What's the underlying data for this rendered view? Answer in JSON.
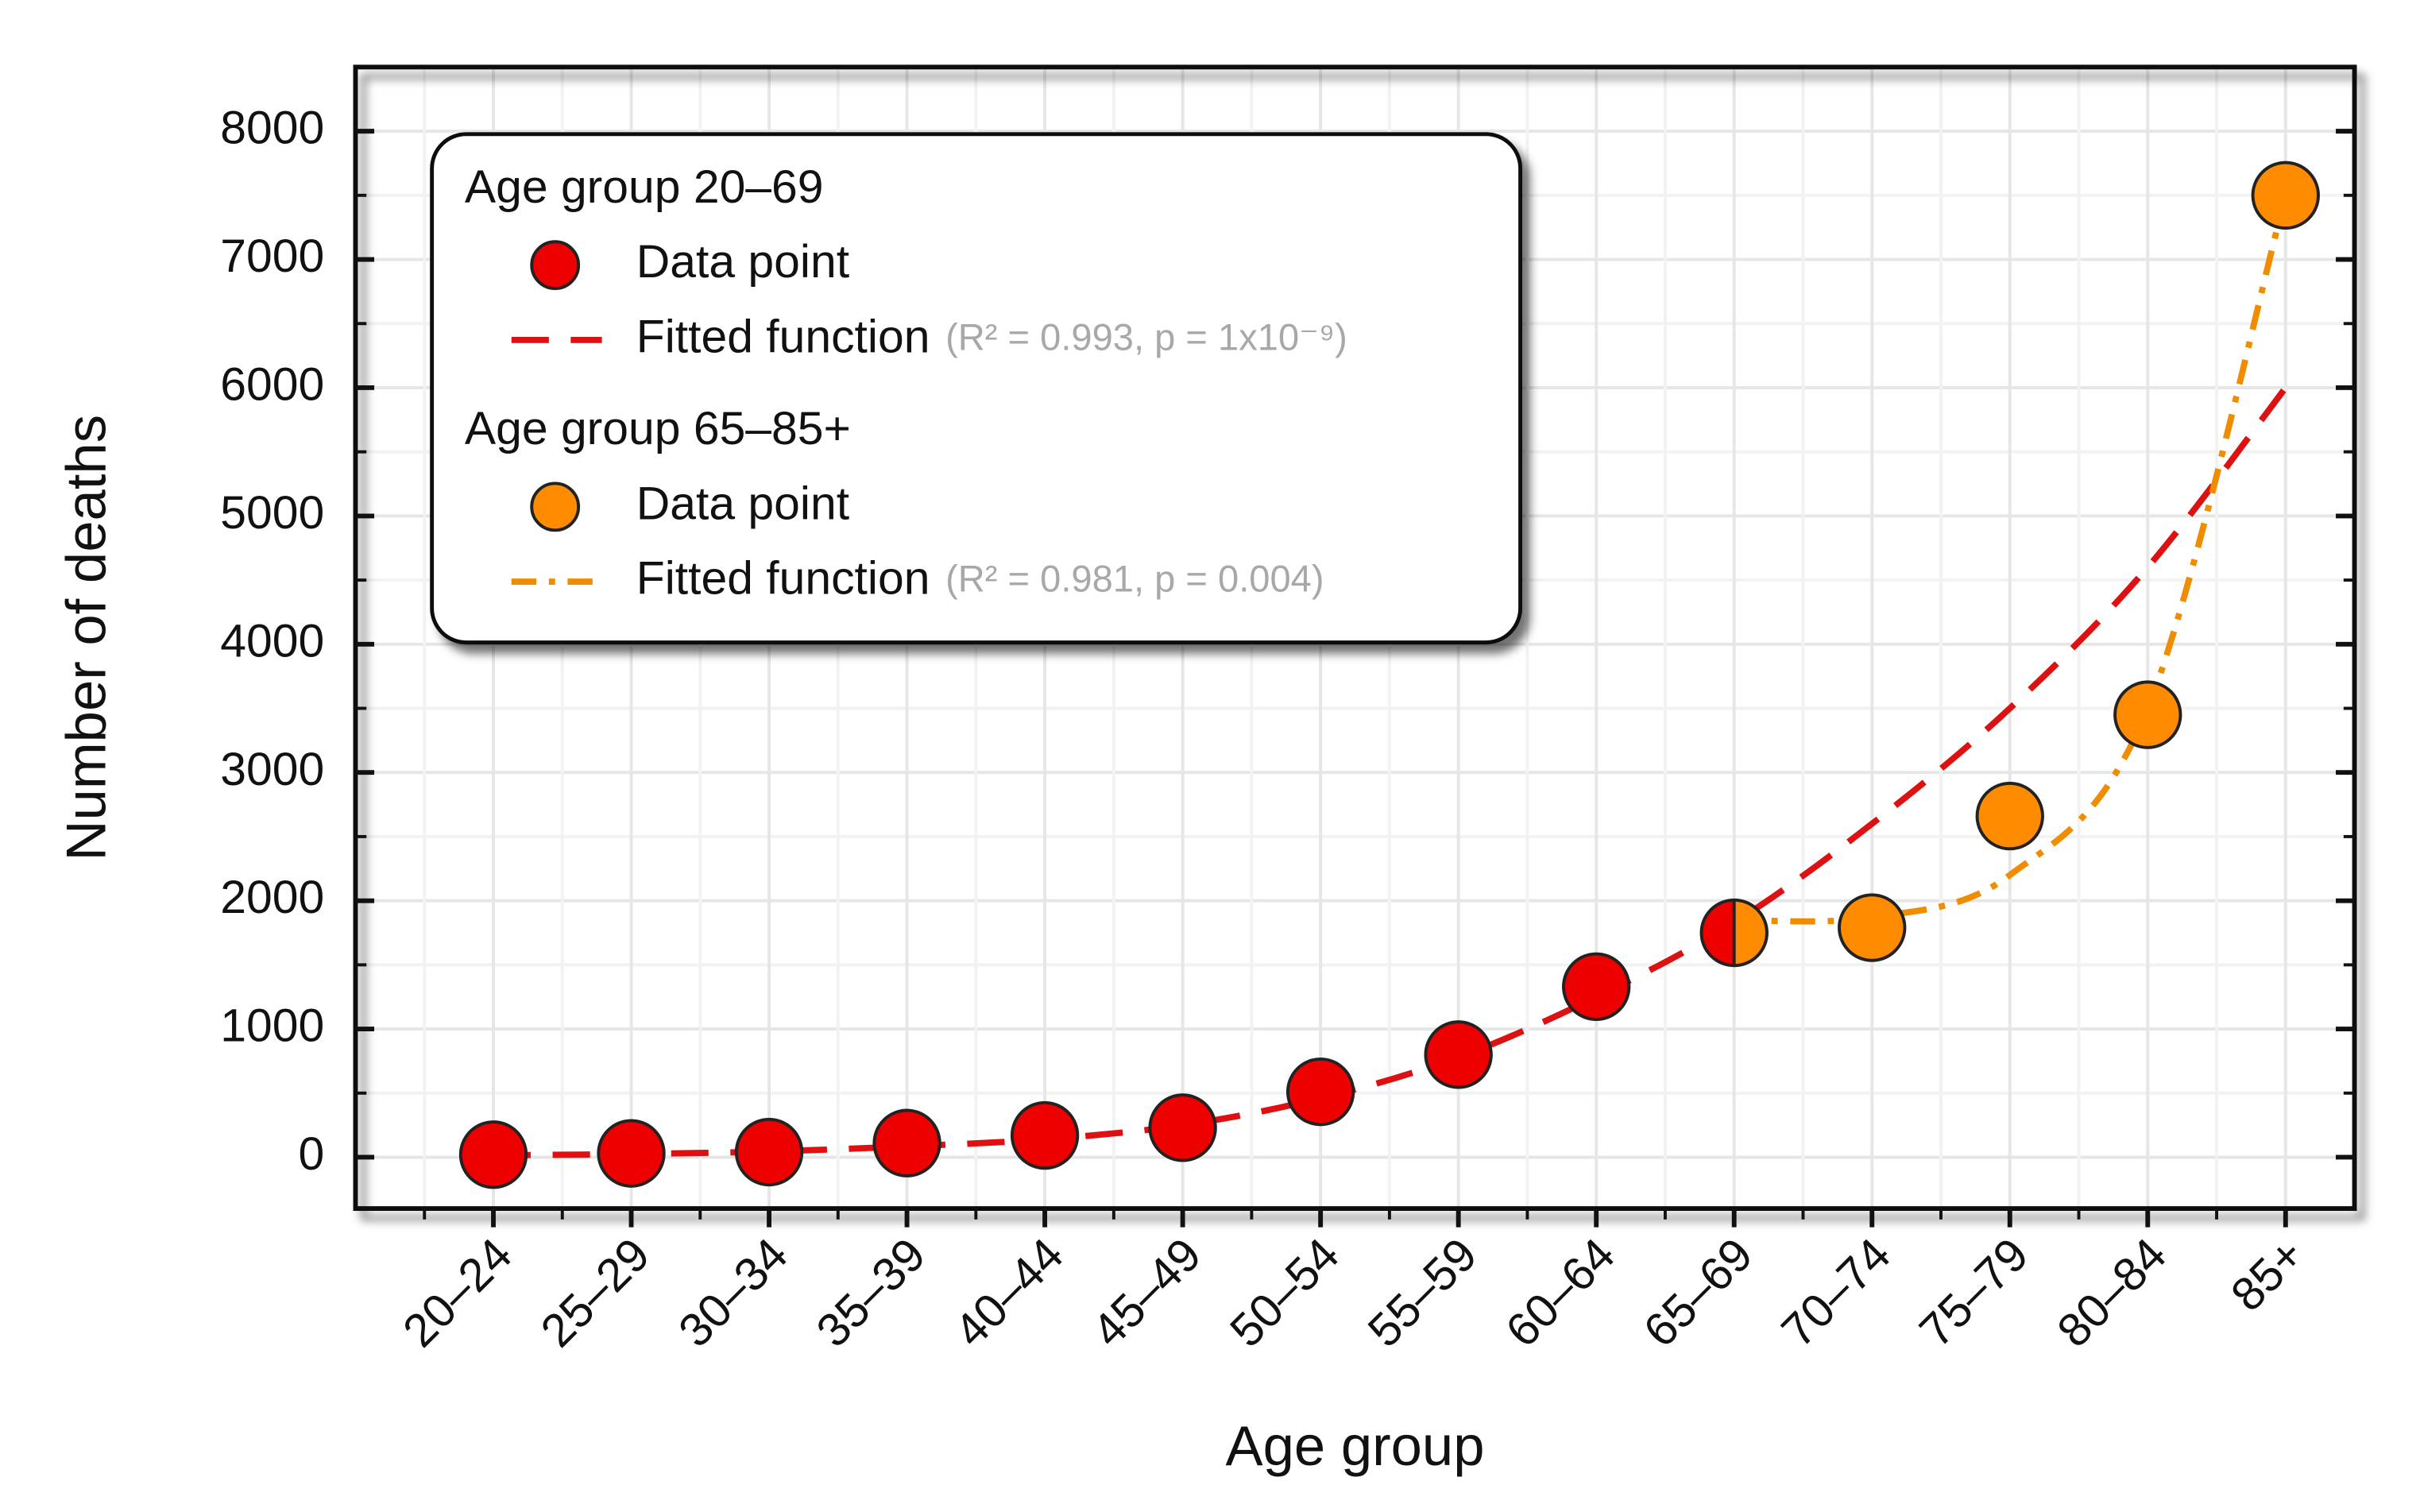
{
  "chart_data": {
    "type": "line",
    "x_label": "Age group",
    "y_label": "Number of deaths",
    "categories": [
      "20–24",
      "25–29",
      "30–34",
      "35–39",
      "40–44",
      "45–49",
      "50–54",
      "55–59",
      "60–64",
      "65–69",
      "70–74",
      "75–79",
      "80–84",
      "85+"
    ],
    "series": [
      {
        "name": "Data point",
        "group": "Age group 20–69",
        "kind": "points",
        "color": "#ee0000",
        "values": [
          20,
          30,
          40,
          110,
          170,
          230,
          510,
          800,
          1330,
          1750,
          null,
          null,
          null,
          null
        ]
      },
      {
        "name": "Fitted function",
        "note": "(R² = 0.993, p = 1x10⁻⁹)",
        "kind": "dashed",
        "color": "#dd1111",
        "values": [
          15,
          25,
          45,
          85,
          140,
          250,
          460,
          780,
          1250,
          1830,
          2600,
          3500,
          4600,
          6000
        ]
      },
      {
        "name": "Data point",
        "group": "Age group 65–85+",
        "kind": "points",
        "color": "#ff8c00",
        "values": [
          null,
          null,
          null,
          null,
          null,
          null,
          null,
          null,
          null,
          1750,
          1790,
          2660,
          3450,
          7500
        ]
      },
      {
        "name": "Fitted function",
        "note": "(R² = 0.981, p = 0.004)",
        "kind": "dashdot",
        "color": "#f08c00",
        "values": [
          null,
          null,
          null,
          null,
          null,
          null,
          null,
          null,
          null,
          1850,
          1870,
          2200,
          3500,
          7500
        ]
      }
    ],
    "ylim": [
      -400,
      8500
    ],
    "yticks": [
      0,
      1000,
      2000,
      3000,
      4000,
      5000,
      6000,
      7000,
      8000
    ],
    "grid": true,
    "legend": "upper left"
  }
}
